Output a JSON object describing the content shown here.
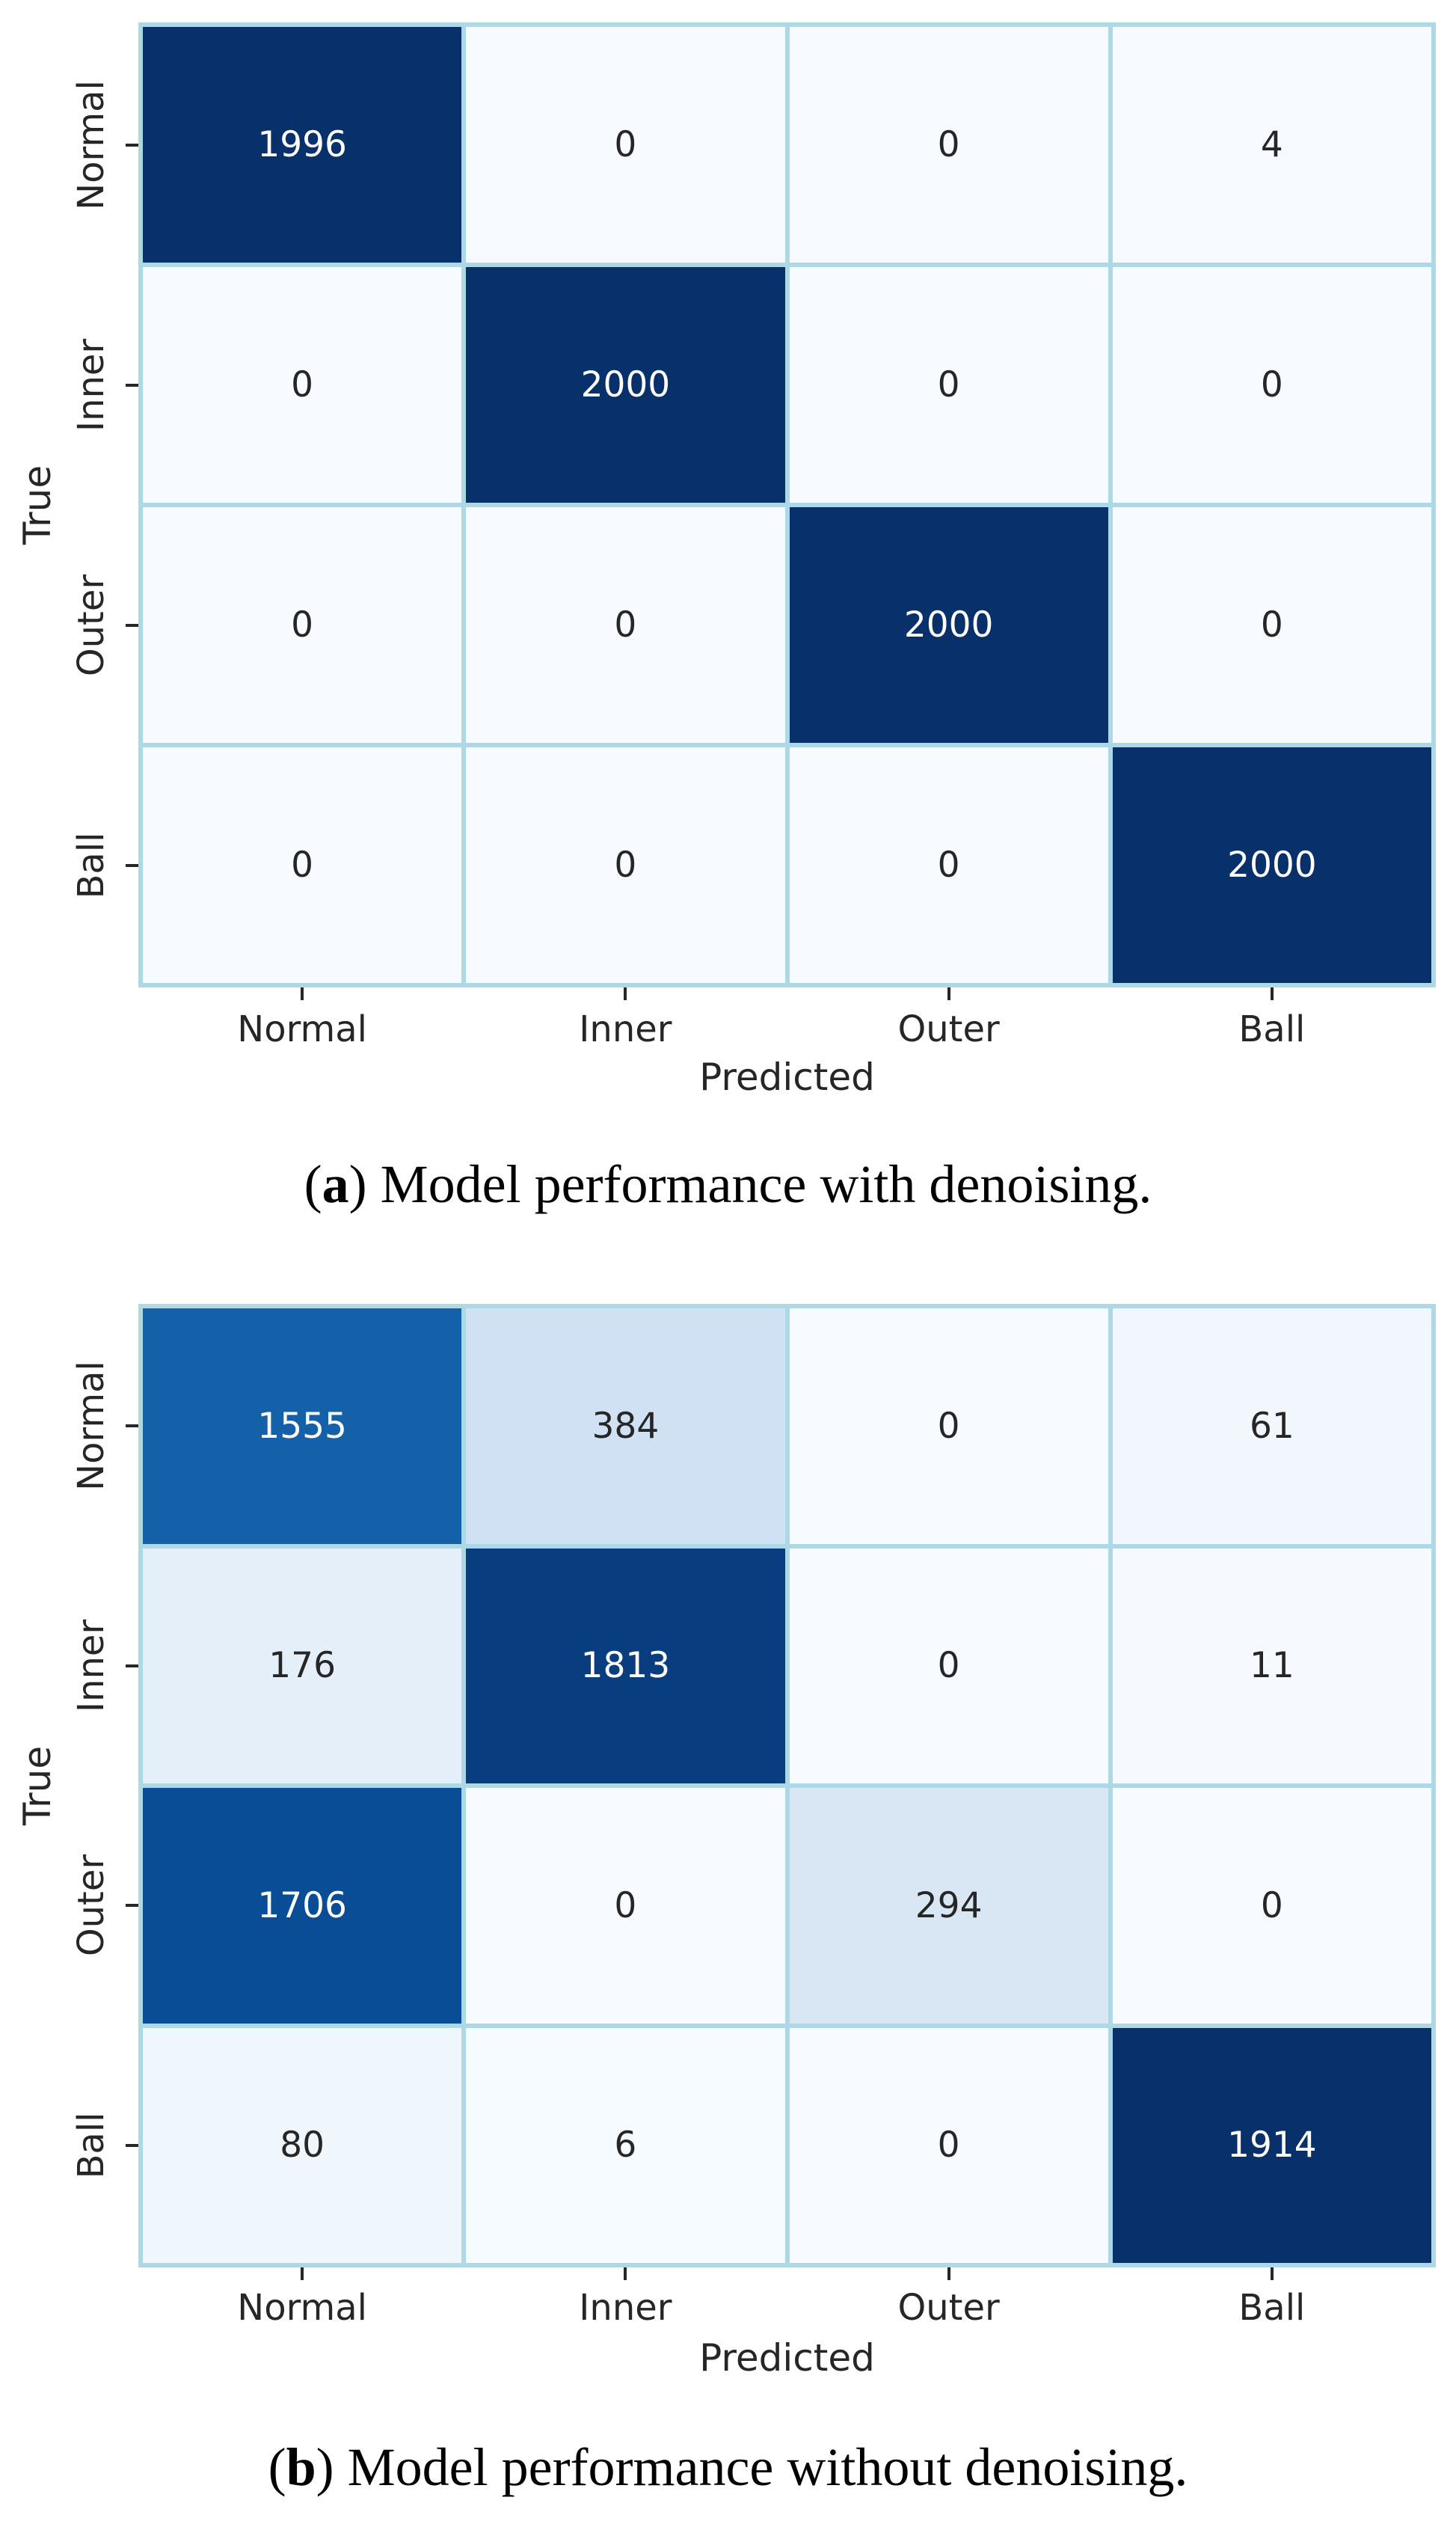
{
  "style": {
    "background": "#ffffff",
    "grid_line_color": "#add8e6",
    "tick_color": "#262626",
    "tick_label_color": "#262626",
    "axis_label_color": "#262626",
    "caption_color": "#000000",
    "annotation_dark_text": "#262626",
    "annotation_light_text": "#ffffff",
    "colormap_name": "Blues",
    "colormap_anchors": [
      [
        247,
        251,
        255
      ],
      [
        222,
        235,
        247
      ],
      [
        198,
        219,
        239
      ],
      [
        158,
        202,
        225
      ],
      [
        107,
        174,
        214
      ],
      [
        66,
        146,
        198
      ],
      [
        33,
        113,
        181
      ],
      [
        8,
        81,
        156
      ],
      [
        8,
        48,
        107
      ]
    ],
    "text_luminance_threshold": 0.408
  },
  "chart_data": [
    {
      "type": "heatmap",
      "caption_open": "(",
      "caption_letter": "a",
      "caption_close": ") ",
      "caption_text": "Model performance with denoising.",
      "xlabel": "Predicted",
      "ylabel": "True",
      "x_categories": [
        "Normal",
        "Inner",
        "Outer",
        "Ball"
      ],
      "y_categories": [
        "Normal",
        "Inner",
        "Outer",
        "Ball"
      ],
      "matrix": [
        [
          1996,
          0,
          0,
          4
        ],
        [
          0,
          2000,
          0,
          0
        ],
        [
          0,
          0,
          2000,
          0
        ],
        [
          0,
          0,
          0,
          2000
        ]
      ],
      "vmin": 0,
      "vmax": 2000,
      "annotated": true,
      "colorbar": false
    },
    {
      "type": "heatmap",
      "caption_open": "(",
      "caption_letter": "b",
      "caption_close": ") ",
      "caption_text": "Model performance without denoising.",
      "xlabel": "Predicted",
      "ylabel": "True",
      "x_categories": [
        "Normal",
        "Inner",
        "Outer",
        "Ball"
      ],
      "y_categories": [
        "Normal",
        "Inner",
        "Outer",
        "Ball"
      ],
      "matrix": [
        [
          1555,
          384,
          0,
          61
        ],
        [
          176,
          1813,
          0,
          11
        ],
        [
          1706,
          0,
          294,
          0
        ],
        [
          80,
          6,
          0,
          1914
        ]
      ],
      "vmin": 0,
      "vmax": 1914,
      "annotated": true,
      "colorbar": false
    }
  ]
}
